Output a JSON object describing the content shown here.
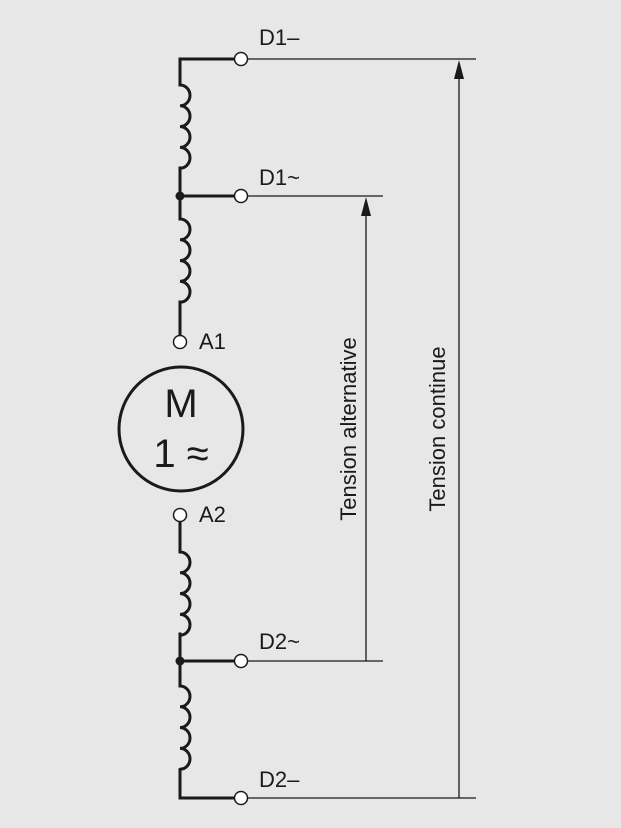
{
  "colors": {
    "background": "#e6e7e6",
    "line": "#1a1a1a",
    "terminal_fill": "#ffffff"
  },
  "terminals": {
    "d1_dc": "D1–",
    "d1_ac": "D1~",
    "a1": "A1",
    "a2": "A2",
    "d2_ac": "D2~",
    "d2_dc": "D2–"
  },
  "motor": {
    "line1": "M",
    "line2": "1 ≈"
  },
  "dimensions": {
    "ac_label": "Tension alternative",
    "dc_label": "Tension continue"
  }
}
